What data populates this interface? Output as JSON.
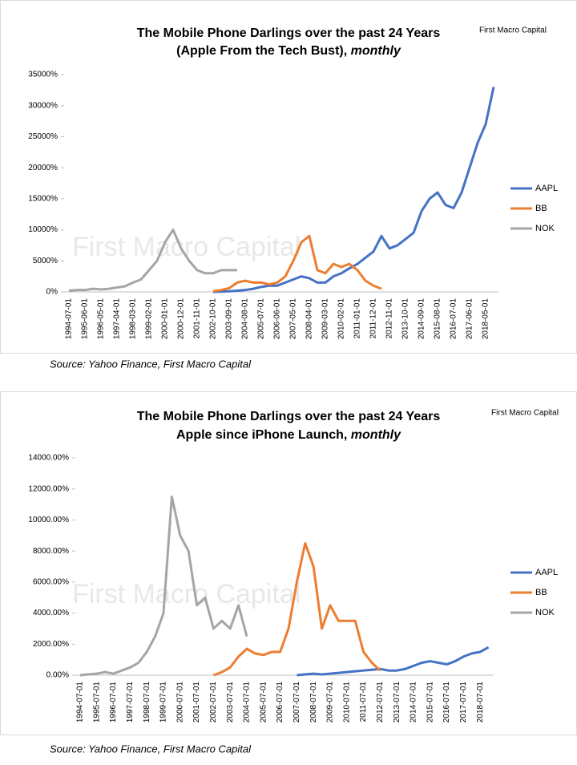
{
  "chart_data": [
    {
      "type": "line",
      "title": "The Mobile Phone Darlings over the past 24 Years",
      "subtitle": "(Apple From the Tech Bust), ",
      "subtitle_emphasis": "monthly",
      "brand": "First Macro Capital",
      "watermark": "First Macro Capital",
      "source": "Source: Yahoo Finance, First Macro Capital",
      "legend": "right",
      "categories": [
        "1994-07-01",
        null,
        "1995-06-01",
        null,
        "1996-05-01",
        null,
        "1997-04-01",
        null,
        "1998-03-01",
        null,
        "1999-02-01",
        null,
        "2000-01-01",
        null,
        "2000-12-01",
        null,
        "2001-11-01",
        null,
        "2002-10-01",
        null,
        "2003-09-01",
        null,
        "2004-08-01",
        null,
        "2005-07-01",
        null,
        "2006-06-01",
        null,
        "2007-05-01",
        null,
        "2008-04-01",
        null,
        "2009-03-01",
        null,
        "2010-02-01",
        null,
        "2011-01-01",
        null,
        "2011-12-01",
        null,
        "2012-11-01",
        null,
        "2013-10-01",
        null,
        "2014-09-01",
        null,
        "2015-08-01",
        null,
        "2016-07-01",
        null,
        "2017-06-01",
        null,
        "2018-05-01",
        null
      ],
      "series": [
        {
          "name": "AAPL",
          "color": "#4472c4",
          "values": [
            null,
            null,
            null,
            null,
            null,
            null,
            null,
            null,
            null,
            null,
            null,
            null,
            null,
            null,
            null,
            null,
            null,
            null,
            0,
            50,
            100,
            200,
            300,
            500,
            800,
            1000,
            1000,
            1500,
            2000,
            2500,
            2200,
            1500,
            1500,
            2500,
            3000,
            3800,
            4500,
            5500,
            6500,
            9000,
            7000,
            7500,
            8500,
            9500,
            13000,
            15000,
            16000,
            14000,
            13500,
            16000,
            20000,
            24000,
            27000,
            33000
          ]
        },
        {
          "name": "BB",
          "color": "#ed7d31",
          "values": [
            null,
            null,
            null,
            null,
            null,
            null,
            null,
            null,
            null,
            null,
            null,
            null,
            null,
            null,
            null,
            null,
            null,
            null,
            100,
            300,
            600,
            1500,
            1800,
            1500,
            1500,
            1200,
            1500,
            2500,
            5000,
            8000,
            9000,
            3500,
            3000,
            4500,
            4000,
            4500,
            3500,
            1800,
            1000,
            500,
            null,
            null,
            null,
            null,
            null,
            null,
            null,
            null,
            null,
            null,
            null,
            null,
            null,
            null
          ]
        },
        {
          "name": "NOK",
          "color": "#a5a5a5",
          "values": [
            200,
            300,
            300,
            500,
            400,
            500,
            700,
            900,
            1500,
            2000,
            3500,
            5000,
            8000,
            10000,
            7000,
            5000,
            3500,
            3000,
            3000,
            3500,
            3500,
            3500,
            null,
            null,
            null,
            null,
            null,
            null,
            null,
            null,
            null,
            null,
            null,
            null,
            null,
            null,
            null,
            null,
            null,
            null,
            null,
            null,
            null,
            null,
            null,
            null,
            null,
            null,
            null,
            null,
            null,
            null,
            null,
            null
          ]
        }
      ],
      "ylim": [
        0,
        35000
      ],
      "yticks": [
        {
          "value": 0,
          "label": "0%"
        },
        {
          "value": 5000,
          "label": "5000%"
        },
        {
          "value": 10000,
          "label": "10000%"
        },
        {
          "value": 15000,
          "label": "15000%"
        },
        {
          "value": 20000,
          "label": "20000%"
        },
        {
          "value": 25000,
          "label": "25000%"
        },
        {
          "value": 30000,
          "label": "30000%"
        },
        {
          "value": 35000,
          "label": "35000%"
        }
      ]
    },
    {
      "type": "line",
      "title": "The Mobile Phone Darlings over the past 24 Years",
      "subtitle": "Apple since iPhone Launch, ",
      "subtitle_emphasis": "monthly",
      "brand": "First Macro Capital",
      "watermark": "First Macro Capital",
      "source": "Source: Yahoo Finance, First Macro Capital",
      "legend": "right",
      "categories": [
        "1994-07-01",
        null,
        "1995-07-01",
        null,
        "1996-07-01",
        null,
        "1997-07-01",
        null,
        "1998-07-01",
        null,
        "1999-07-01",
        null,
        "2000-07-01",
        null,
        "2001-07-01",
        null,
        "2002-07-01",
        null,
        "2003-07-01",
        null,
        "2004-07-01",
        null,
        "2005-07-01",
        null,
        "2006-07-01",
        null,
        "2007-07-01",
        null,
        "2008-07-01",
        null,
        "2009-07-01",
        null,
        "2010-07-01",
        null,
        "2011-07-01",
        null,
        "2012-07-01",
        null,
        "2013-07-01",
        null,
        "2014-07-01",
        null,
        "2015-07-01",
        null,
        "2016-07-01",
        null,
        "2017-07-01",
        null,
        "2018-07-01",
        null
      ],
      "series": [
        {
          "name": "AAPL",
          "color": "#4472c4",
          "values": [
            null,
            null,
            null,
            null,
            null,
            null,
            null,
            null,
            null,
            null,
            null,
            null,
            null,
            null,
            null,
            null,
            null,
            null,
            null,
            null,
            null,
            null,
            null,
            null,
            null,
            null,
            0,
            50,
            100,
            50,
            100,
            150,
            200,
            250,
            300,
            350,
            400,
            300,
            300,
            400,
            600,
            800,
            900,
            800,
            700,
            900,
            1200,
            1400,
            1500,
            1800
          ]
        },
        {
          "name": "BB",
          "color": "#ed7d31",
          "values": [
            null,
            null,
            null,
            null,
            null,
            null,
            null,
            null,
            null,
            null,
            null,
            null,
            null,
            null,
            null,
            null,
            0,
            200,
            500,
            1200,
            1700,
            1400,
            1300,
            1500,
            1500,
            3000,
            6000,
            8500,
            7000,
            3000,
            4500,
            3500,
            3500,
            3500,
            1500,
            800,
            300,
            null,
            null,
            null,
            null,
            null,
            null,
            null,
            null,
            null,
            null,
            null,
            null,
            null
          ]
        },
        {
          "name": "NOK",
          "color": "#a5a5a5",
          "values": [
            0,
            50,
            100,
            200,
            100,
            300,
            500,
            800,
            1500,
            2500,
            4000,
            11500,
            9000,
            8000,
            4500,
            5000,
            3000,
            3500,
            3000,
            4500,
            2500,
            null,
            null,
            null,
            null,
            null,
            null,
            null,
            null,
            null,
            null,
            null,
            null,
            null,
            null,
            null,
            null,
            null,
            null,
            null,
            null,
            null,
            null,
            null,
            null,
            null,
            null,
            null,
            null,
            null
          ]
        }
      ],
      "ylim": [
        0,
        14000
      ],
      "yticks": [
        {
          "value": 0,
          "label": "0.00%"
        },
        {
          "value": 2000,
          "label": "2000.00%"
        },
        {
          "value": 4000,
          "label": "4000.00%"
        },
        {
          "value": 6000,
          "label": "6000.00%"
        },
        {
          "value": 8000,
          "label": "8000.00%"
        },
        {
          "value": 10000,
          "label": "10000.00%"
        },
        {
          "value": 12000,
          "label": "12000.00%"
        },
        {
          "value": 14000,
          "label": "14000.00%"
        }
      ]
    }
  ]
}
